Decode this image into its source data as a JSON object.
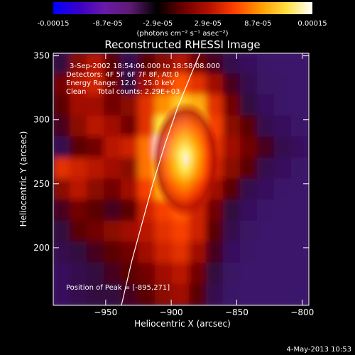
{
  "colorbar": {
    "tick_labels": [
      "-0.00015",
      "-8.7e-05",
      "-2.9e-05",
      "2.9e-05",
      "8.7e-05",
      "0.00015"
    ],
    "tick_values": [
      -0.00015,
      -8.7e-05,
      -2.9e-05,
      2.9e-05,
      8.7e-05,
      0.00015
    ],
    "range": [
      -0.00015,
      0.00015
    ],
    "units_label": "(photons cm⁻² s⁻¹ asec⁻²)",
    "gradient_colors": [
      "#0000ff",
      "#3a00c8",
      "#6a1aa6",
      "#5c1a70",
      "#000000",
      "#6a0000",
      "#b41000",
      "#ff4000",
      "#ff9a00",
      "#ffe040",
      "#ffffff"
    ]
  },
  "chart_data": {
    "type": "heatmap",
    "title": "Reconstructed RHESSI Image",
    "xlabel": "Heliocentric X (arcsec)",
    "ylabel": "Heliocentric Y (arcsec)",
    "xlim": [
      -990,
      -795
    ],
    "ylim": [
      155,
      352
    ],
    "x_ticks": [
      -950,
      -900,
      -850,
      -800
    ],
    "y_ticks": [
      200,
      250,
      300,
      350
    ],
    "x_tick_labels": [
      "−950",
      "−900",
      "−850",
      "−800"
    ],
    "y_tick_labels": [
      "200",
      "250",
      "300",
      "350"
    ],
    "annotations": [
      "3-Sep-2002 18:54:06.000 to 18:58:08.000",
      "Detectors: 4F 5F 6F 7F 8F, Att 0",
      "Energy Range: 12.0 - 25.0 keV",
      "Clean     Total counts: 2.29E+03"
    ],
    "peak_label": "Position of Peak = [-895,271]",
    "peak": [
      -895,
      271
    ],
    "limb": [
      [
        -938,
        155
      ],
      [
        -930,
        190
      ],
      [
        -922,
        220
      ],
      [
        -914,
        250
      ],
      [
        -905,
        280
      ],
      [
        -895,
        310
      ],
      [
        -883,
        340
      ],
      [
        -878,
        352
      ]
    ],
    "image_intensity": [
      [
        0.15,
        0.35,
        0.45,
        0.25,
        0.1,
        0.25,
        0.35,
        0.45,
        0.3,
        0.2,
        0.1,
        0.05,
        0.02,
        0.01,
        0.01
      ],
      [
        0.3,
        0.45,
        0.5,
        0.3,
        0.15,
        0.4,
        0.55,
        0.65,
        0.55,
        0.4,
        0.2,
        0.1,
        0.03,
        0.02,
        0.01
      ],
      [
        0.25,
        0.4,
        0.4,
        0.3,
        0.35,
        0.55,
        0.75,
        0.85,
        0.8,
        0.55,
        0.3,
        0.15,
        0.05,
        0.02,
        0.01
      ],
      [
        0.2,
        0.35,
        0.45,
        0.4,
        0.3,
        0.55,
        0.9,
        0.95,
        0.85,
        0.6,
        0.35,
        0.25,
        0.1,
        0.05,
        0.02
      ],
      [
        0.1,
        0.25,
        0.3,
        0.45,
        0.5,
        0.7,
        1.0,
        0.95,
        0.8,
        0.55,
        0.4,
        0.3,
        0.2,
        0.1,
        0.05
      ],
      [
        0.55,
        0.5,
        0.45,
        0.4,
        0.35,
        0.7,
        0.9,
        0.85,
        0.7,
        0.5,
        0.35,
        0.25,
        0.1,
        0.05,
        0.02
      ],
      [
        0.35,
        0.45,
        0.35,
        0.3,
        0.4,
        0.6,
        0.8,
        0.75,
        0.55,
        0.4,
        0.25,
        0.1,
        0.05,
        0.02,
        0.01
      ],
      [
        0.2,
        0.3,
        0.25,
        0.2,
        0.25,
        0.5,
        0.6,
        0.65,
        0.5,
        0.3,
        0.15,
        0.05,
        0.02,
        0.01,
        0.01
      ],
      [
        0.15,
        0.25,
        0.3,
        0.35,
        0.4,
        0.45,
        0.55,
        0.6,
        0.5,
        0.25,
        0.1,
        0.03,
        0.01,
        0.01,
        0.01
      ],
      [
        0.1,
        0.15,
        0.2,
        0.25,
        0.3,
        0.4,
        0.5,
        0.55,
        0.4,
        0.2,
        0.05,
        0.02,
        0.01,
        0.01,
        0.01
      ],
      [
        0.05,
        0.1,
        0.15,
        0.2,
        0.25,
        0.3,
        0.4,
        0.45,
        0.3,
        0.15,
        0.03,
        0.01,
        0.01,
        0.01,
        0.01
      ],
      [
        0.05,
        0.1,
        0.15,
        0.15,
        0.2,
        0.25,
        0.35,
        0.4,
        0.25,
        0.1,
        0.02,
        0.01,
        0.01,
        0.01,
        0.01
      ]
    ]
  },
  "footer": {
    "timestamp": "4-May-2013 10:53"
  }
}
